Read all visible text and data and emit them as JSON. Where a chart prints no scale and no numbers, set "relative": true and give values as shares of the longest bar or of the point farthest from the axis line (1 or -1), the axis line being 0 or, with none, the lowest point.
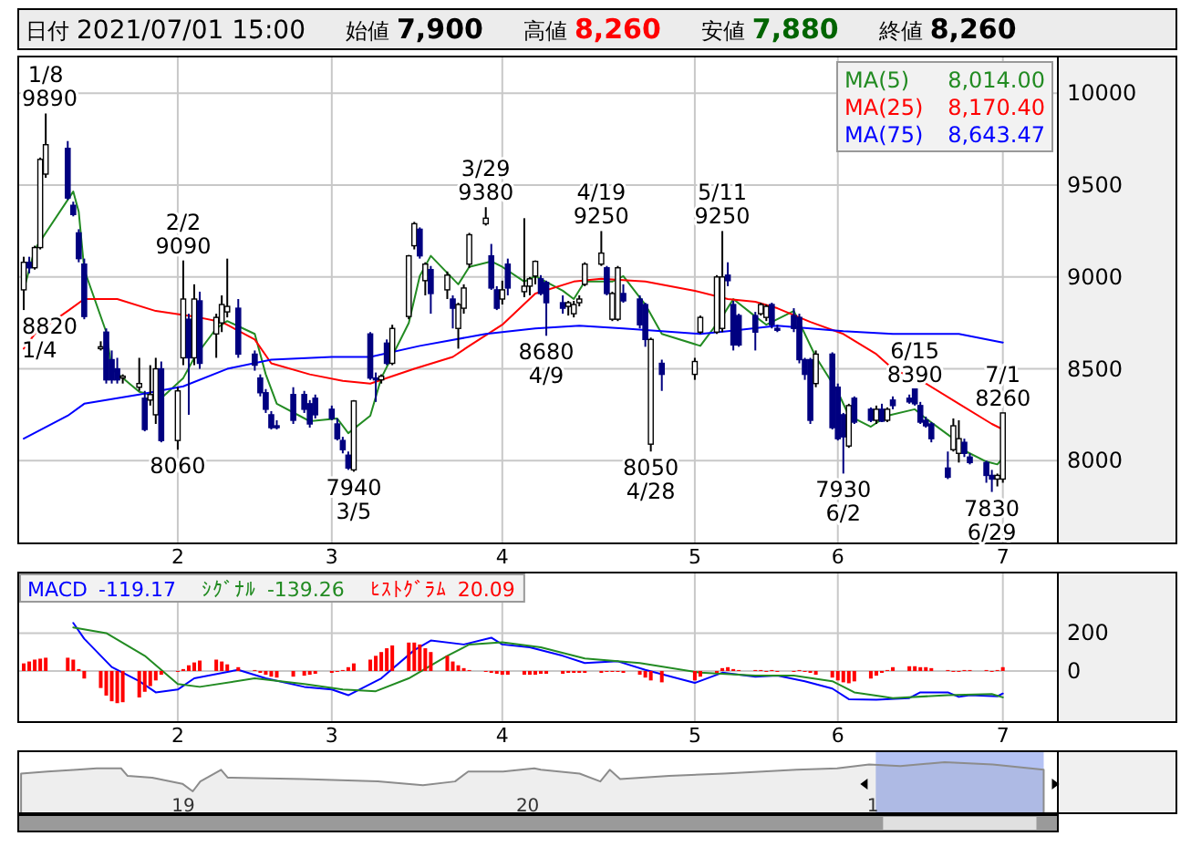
{
  "chart_data": [
    {
      "type": "other",
      "annotations": [
        "日付",
        "2021/07/01 15:00",
        "始値",
        "7,900",
        "高値",
        "8,260",
        "安値",
        "7,880",
        "終値",
        "8,260"
      ],
      "colors": [
        "#000000",
        "#000000",
        "#000000",
        "#000000",
        "#000000",
        "#ff0000",
        "#000000",
        "#006400",
        "#000000",
        "#000000"
      ]
    },
    {
      "type": "candlestick",
      "x": [
        "2021-01-04",
        "2021-01-05",
        "2021-01-06",
        "2021-01-07",
        "2021-01-08",
        "2021-01-12",
        "2021-01-13",
        "2021-01-14",
        "2021-01-15",
        "2021-01-18",
        "2021-01-19",
        "2021-01-20",
        "2021-01-21",
        "2021-01-22",
        "2021-01-25",
        "2021-01-26",
        "2021-01-27",
        "2021-01-28",
        "2021-01-29",
        "2021-02-01",
        "2021-02-02",
        "2021-02-03",
        "2021-02-04",
        "2021-02-05",
        "2021-02-08",
        "2021-02-09",
        "2021-02-10",
        "2021-02-12",
        "2021-02-15",
        "2021-02-16",
        "2021-02-17",
        "2021-02-18",
        "2021-02-19",
        "2021-02-22",
        "2021-02-24",
        "2021-02-25",
        "2021-02-26",
        "2021-03-01",
        "2021-03-02",
        "2021-03-03",
        "2021-03-04",
        "2021-03-05",
        "2021-03-08",
        "2021-03-09",
        "2021-03-10",
        "2021-03-11",
        "2021-03-12",
        "2021-03-15",
        "2021-03-16",
        "2021-03-17",
        "2021-03-18",
        "2021-03-19",
        "2021-03-22",
        "2021-03-23",
        "2021-03-24",
        "2021-03-25",
        "2021-03-26",
        "2021-03-29",
        "2021-03-30",
        "2021-03-31",
        "2021-04-01",
        "2021-04-02",
        "2021-04-05",
        "2021-04-06",
        "2021-04-07",
        "2021-04-08",
        "2021-04-09",
        "2021-04-12",
        "2021-04-13",
        "2021-04-14",
        "2021-04-15",
        "2021-04-16",
        "2021-04-19",
        "2021-04-20",
        "2021-04-21",
        "2021-04-22",
        "2021-04-23",
        "2021-04-26",
        "2021-04-27",
        "2021-04-28",
        "2021-04-30",
        "2021-05-06",
        "2021-05-07",
        "2021-05-10",
        "2021-05-11",
        "2021-05-12",
        "2021-05-13",
        "2021-05-14",
        "2021-05-17",
        "2021-05-18",
        "2021-05-19",
        "2021-05-20",
        "2021-05-21",
        "2021-05-24",
        "2021-05-25",
        "2021-05-26",
        "2021-05-27",
        "2021-05-28",
        "2021-05-31",
        "2021-06-01",
        "2021-06-02",
        "2021-06-03",
        "2021-06-04",
        "2021-06-07",
        "2021-06-08",
        "2021-06-09",
        "2021-06-10",
        "2021-06-11",
        "2021-06-14",
        "2021-06-15",
        "2021-06-16",
        "2021-06-17",
        "2021-06-18",
        "2021-06-21",
        "2021-06-22",
        "2021-06-23",
        "2021-06-24",
        "2021-06-25",
        "2021-06-28",
        "2021-06-29",
        "2021-06-30",
        "2021-07-01"
      ],
      "xlim": [
        "2021-01-03",
        "2021-07-11"
      ],
      "xticks": [
        {
          "value": "2021-02-01",
          "label": "2"
        },
        {
          "value": "2021-03-01",
          "label": "3"
        },
        {
          "value": "2021-04-01",
          "label": "4"
        },
        {
          "value": "2021-05-06",
          "label": "5"
        },
        {
          "value": "2021-06-01",
          "label": "6"
        },
        {
          "value": "2021-07-01",
          "label": "7"
        }
      ],
      "ylim": [
        7550,
        10200
      ],
      "yticks": [
        8000,
        8500,
        9000,
        9500,
        10000
      ],
      "grid": true,
      "legend": "top right",
      "ohlc": [
        [
          8930,
          9110,
          8820,
          9080
        ],
        [
          9080,
          9110,
          9020,
          9050
        ],
        [
          9050,
          9170,
          9040,
          9160
        ],
        [
          9160,
          9650,
          9150,
          9640
        ],
        [
          9560,
          9890,
          9540,
          9720
        ],
        [
          9700,
          9740,
          9420,
          9430
        ],
        [
          9390,
          9410,
          9330,
          9340
        ],
        [
          9240,
          9260,
          9080,
          9100
        ],
        [
          9070,
          9100,
          8770,
          8785
        ],
        [
          8610,
          8650,
          8600,
          8620
        ],
        [
          8700,
          8720,
          8420,
          8440
        ],
        [
          8550,
          8600,
          8420,
          8440
        ],
        [
          8500,
          8560,
          8420,
          8440
        ],
        [
          8450,
          8470,
          8420,
          8460
        ],
        [
          8400,
          8560,
          8380,
          8420
        ],
        [
          8340,
          8380,
          8160,
          8170
        ],
        [
          8330,
          8520,
          8300,
          8360
        ],
        [
          8250,
          8560,
          8200,
          8500
        ],
        [
          8500,
          8540,
          8100,
          8110
        ],
        [
          8110,
          8400,
          8060,
          8380
        ],
        [
          8560,
          9090,
          8520,
          8880
        ],
        [
          8770,
          8800,
          8250,
          8560
        ],
        [
          8560,
          8960,
          8520,
          8880
        ],
        [
          8870,
          8920,
          8500,
          8530
        ],
        [
          8690,
          8800,
          8560,
          8780
        ],
        [
          8750,
          8900,
          8700,
          8850
        ],
        [
          8810,
          9100,
          8780,
          8840
        ],
        [
          8830,
          8880,
          8560,
          8580
        ],
        [
          8580,
          8600,
          8490,
          8520
        ],
        [
          8450,
          8470,
          8350,
          8370
        ],
        [
          8370,
          8390,
          8260,
          8280
        ],
        [
          8250,
          8270,
          8170,
          8180
        ],
        [
          8190,
          8220,
          8170,
          8180
        ],
        [
          8360,
          8400,
          8200,
          8220
        ],
        [
          8360,
          8380,
          8260,
          8280
        ],
        [
          8310,
          8330,
          8180,
          8200
        ],
        [
          8340,
          8360,
          8230,
          8250
        ],
        [
          8280,
          8300,
          8220,
          8230
        ],
        [
          8200,
          8230,
          8110,
          8120
        ],
        [
          8110,
          8130,
          8040,
          8060
        ],
        [
          8030,
          8050,
          7950,
          7960
        ],
        [
          7950,
          8330,
          7940,
          8325
        ],
        [
          8690,
          8700,
          8440,
          8450
        ],
        [
          8450,
          8480,
          8320,
          8440
        ],
        [
          8440,
          8470,
          8420,
          8460
        ],
        [
          8640,
          8660,
          8520,
          8530
        ],
        [
          8530,
          8740,
          8520,
          8720
        ],
        [
          8785,
          9120,
          8770,
          9115
        ],
        [
          9170,
          9300,
          9150,
          9290
        ],
        [
          9260,
          9270,
          9100,
          9115
        ],
        [
          8980,
          9080,
          8900,
          9070
        ],
        [
          9040,
          9060,
          8800,
          8910
        ],
        [
          8930,
          9030,
          8880,
          9010
        ],
        [
          8880,
          8900,
          8720,
          8830
        ],
        [
          8720,
          8860,
          8610,
          8850
        ],
        [
          8830,
          8960,
          8800,
          8940
        ],
        [
          9070,
          9240,
          9050,
          9230
        ],
        [
          9290,
          9380,
          9280,
          9320
        ],
        [
          9115,
          9180,
          8930,
          8940
        ],
        [
          8930,
          8950,
          8820,
          8830
        ],
        [
          8880,
          8980,
          8850,
          8930
        ],
        [
          9070,
          9100,
          8900,
          8940
        ],
        [
          8920,
          9320,
          8890,
          8950
        ],
        [
          8950,
          9000,
          8900,
          8990
        ],
        [
          9005,
          9090,
          8960,
          9085
        ],
        [
          8990,
          9010,
          8900,
          8910
        ],
        [
          8970,
          8980,
          8680,
          8860
        ],
        [
          8860,
          8900,
          8800,
          8830
        ],
        [
          8840,
          8870,
          8790,
          8860
        ],
        [
          8800,
          8870,
          8780,
          8850
        ],
        [
          8860,
          8900,
          8840,
          8880
        ],
        [
          8960,
          9080,
          8950,
          9070
        ],
        [
          9070,
          9250,
          9060,
          9130
        ],
        [
          9050,
          9060,
          8900,
          8910
        ],
        [
          8770,
          8920,
          8760,
          8910
        ],
        [
          8770,
          9060,
          8760,
          9050
        ],
        [
          8910,
          8960,
          8860,
          8870
        ],
        [
          8880,
          8900,
          8720,
          8740
        ],
        [
          8850,
          8860,
          8620,
          8660
        ],
        [
          8090,
          8670,
          8050,
          8660
        ],
        [
          8530,
          8550,
          8380,
          8470
        ],
        [
          8470,
          8560,
          8440,
          8540
        ],
        [
          8700,
          8790,
          8690,
          8780
        ],
        [
          8700,
          9010,
          8690,
          9000
        ],
        [
          8720,
          9250,
          8700,
          9000
        ],
        [
          9010,
          9080,
          8950,
          8980
        ],
        [
          8850,
          8870,
          8600,
          8630
        ],
        [
          8790,
          8800,
          8620,
          8630
        ],
        [
          8790,
          8810,
          8600,
          8700
        ],
        [
          8800,
          8860,
          8790,
          8850
        ],
        [
          8780,
          8850,
          8760,
          8840
        ],
        [
          8850,
          8860,
          8720,
          8740
        ],
        [
          8720,
          8740,
          8700,
          8710
        ],
        [
          8790,
          8830,
          8700,
          8720
        ],
        [
          8780,
          8800,
          8530,
          8550
        ],
        [
          8550,
          8560,
          8440,
          8470
        ],
        [
          8550,
          8560,
          8200,
          8220
        ],
        [
          8420,
          8600,
          8400,
          8580
        ],
        [
          8580,
          8590,
          8170,
          8180
        ],
        [
          8400,
          8420,
          8110,
          8120
        ],
        [
          8250,
          8260,
          7930,
          8130
        ],
        [
          8080,
          8310,
          8070,
          8300
        ],
        [
          8340,
          8350,
          8200,
          8210
        ],
        [
          8280,
          8290,
          8210,
          8220
        ],
        [
          8220,
          8300,
          8200,
          8280
        ],
        [
          8280,
          8310,
          8210,
          8215
        ],
        [
          8220,
          8290,
          8210,
          8280
        ],
        [
          8330,
          8350,
          8280,
          8300
        ],
        [
          8340,
          8360,
          8310,
          8320
        ],
        [
          8390,
          8390,
          8300,
          8310
        ],
        [
          8300,
          8320,
          8200,
          8210
        ],
        [
          8220,
          8240,
          8180,
          8190
        ],
        [
          8200,
          8210,
          8100,
          8120
        ],
        [
          7960,
          8050,
          7900,
          7910
        ],
        [
          8060,
          8230,
          8050,
          8190
        ],
        [
          8040,
          8220,
          7990,
          8120
        ],
        [
          8100,
          8120,
          8020,
          8040
        ],
        [
          8020,
          8040,
          7980,
          7990
        ],
        [
          7990,
          8000,
          7880,
          7920
        ],
        [
          7920,
          7950,
          7830,
          7900
        ],
        [
          7900,
          7930,
          7860,
          7920
        ],
        [
          7900,
          8260,
          7880,
          8260
        ]
      ],
      "series": [
        {
          "name": "MA(5)",
          "type": "line",
          "color": "#228b22",
          "x": [
            "2021-01-04",
            "2021-01-06",
            "2021-01-13",
            "2021-01-14",
            "2021-01-15",
            "2021-01-19",
            "2021-01-20",
            "2021-01-25",
            "2021-01-27",
            "2021-01-29",
            "2021-02-02",
            "2021-02-04",
            "2021-02-08",
            "2021-02-10",
            "2021-02-15",
            "2021-02-17",
            "2021-02-19",
            "2021-02-25",
            "2021-03-02",
            "2021-03-04",
            "2021-03-08",
            "2021-03-10",
            "2021-03-15",
            "2021-03-17",
            "2021-03-19",
            "2021-03-24",
            "2021-03-26",
            "2021-03-30",
            "2021-04-01",
            "2021-04-05",
            "2021-04-07",
            "2021-04-12",
            "2021-04-14",
            "2021-04-16",
            "2021-04-21",
            "2021-04-23",
            "2021-04-27",
            "2021-04-30",
            "2021-05-07",
            "2021-05-11",
            "2021-05-13",
            "2021-05-17",
            "2021-05-19",
            "2021-05-24",
            "2021-05-28",
            "2021-06-01",
            "2021-06-03",
            "2021-06-07",
            "2021-06-10",
            "2021-06-15",
            "2021-06-17",
            "2021-06-22",
            "2021-06-24",
            "2021-06-28",
            "2021-06-30",
            "2021-07-01"
          ],
          "values": [
            8930,
            9150,
            9465,
            9355,
            9040,
            8700,
            8500,
            8375,
            8360,
            8340,
            8450,
            8560,
            8720,
            8760,
            8690,
            8470,
            8310,
            8215,
            8230,
            8150,
            8245,
            8450,
            8750,
            9005,
            9115,
            8960,
            9055,
            9085,
            9055,
            8975,
            9005,
            8925,
            8880,
            8975,
            8975,
            9005,
            8850,
            8690,
            8625,
            8785,
            8880,
            8785,
            8740,
            8815,
            8565,
            8375,
            8245,
            8185,
            8245,
            8280,
            8230,
            8120,
            8055,
            7995,
            7980,
            8014
          ]
        },
        {
          "name": "MA(25)",
          "type": "line",
          "color": "#ff0000",
          "x": [
            "2021-01-04",
            "2021-01-06",
            "2021-01-12",
            "2021-01-15",
            "2021-01-21",
            "2021-01-28",
            "2021-02-04",
            "2021-02-09",
            "2021-02-15",
            "2021-02-18",
            "2021-02-25",
            "2021-03-03",
            "2021-03-08",
            "2021-03-16",
            "2021-03-23",
            "2021-03-26",
            "2021-04-01",
            "2021-04-07",
            "2021-04-14",
            "2021-04-19",
            "2021-04-27",
            "2021-05-06",
            "2021-05-12",
            "2021-05-17",
            "2021-05-21",
            "2021-05-27",
            "2021-06-02",
            "2021-06-08",
            "2021-06-11",
            "2021-06-17",
            "2021-06-23",
            "2021-06-29",
            "2021-07-01"
          ],
          "values": [
            8610,
            8690,
            8815,
            8880,
            8880,
            8815,
            8785,
            8755,
            8660,
            8530,
            8470,
            8435,
            8420,
            8500,
            8565,
            8625,
            8740,
            8910,
            8975,
            8990,
            8975,
            8925,
            8880,
            8865,
            8830,
            8755,
            8690,
            8580,
            8500,
            8420,
            8310,
            8200,
            8170.4
          ]
        },
        {
          "name": "MA(75)",
          "type": "line",
          "color": "#0000ff",
          "x": [
            "2021-01-04",
            "2021-01-12",
            "2021-01-15",
            "2021-01-25",
            "2021-02-02",
            "2021-02-10",
            "2021-02-18",
            "2021-03-01",
            "2021-03-08",
            "2021-03-17",
            "2021-03-29",
            "2021-04-07",
            "2021-04-15",
            "2021-04-23",
            "2021-05-07",
            "2021-05-12",
            "2021-05-21",
            "2021-06-02",
            "2021-06-11",
            "2021-06-23",
            "2021-07-01"
          ],
          "values": [
            8120,
            8245,
            8310,
            8360,
            8405,
            8500,
            8550,
            8565,
            8565,
            8625,
            8690,
            8720,
            8735,
            8720,
            8690,
            8705,
            8735,
            8705,
            8690,
            8690,
            8643.47
          ]
        }
      ],
      "annotations": [
        "8,014.00",
        "8,170.40",
        "8,643.47",
        {
          "text": "1/8",
          "x": "2021-01-08",
          "y": 9890
        },
        {
          "text": "9890",
          "x": "2021-01-08",
          "y": 9890
        },
        {
          "text": "8820",
          "x": "2021-01-04",
          "y": 8820
        },
        {
          "text": "1/4",
          "x": "2021-01-04",
          "y": 8820
        },
        {
          "text": "2/2",
          "x": "2021-02-02",
          "y": 9090
        },
        {
          "text": "9090",
          "x": "2021-02-02",
          "y": 9090
        },
        {
          "text": "8060",
          "x": "2021-02-01",
          "y": 8060
        },
        {
          "text": "7940",
          "x": "2021-03-05",
          "y": 7940
        },
        {
          "text": "3/5",
          "x": "2021-03-05",
          "y": 7940
        },
        {
          "text": "3/29",
          "x": "2021-03-29",
          "y": 9380
        },
        {
          "text": "9380",
          "x": "2021-03-29",
          "y": 9380
        },
        {
          "text": "8680",
          "x": "2021-04-09",
          "y": 8680
        },
        {
          "text": "4/9",
          "x": "2021-04-09",
          "y": 8680
        },
        {
          "text": "4/19",
          "x": "2021-04-19",
          "y": 9250
        },
        {
          "text": "9250",
          "x": "2021-04-19",
          "y": 9250
        },
        {
          "text": "8050",
          "x": "2021-04-28",
          "y": 8050
        },
        {
          "text": "4/28",
          "x": "2021-04-28",
          "y": 8050
        },
        {
          "text": "5/11",
          "x": "2021-05-11",
          "y": 9250
        },
        {
          "text": "9250",
          "x": "2021-05-11",
          "y": 9250
        },
        {
          "text": "7930",
          "x": "2021-06-02",
          "y": 7930
        },
        {
          "text": "6/2",
          "x": "2021-06-02",
          "y": 7930
        },
        {
          "text": "6/15",
          "x": "2021-06-15",
          "y": 8390
        },
        {
          "text": "8390",
          "x": "2021-06-15",
          "y": 8390
        },
        {
          "text": "7830",
          "x": "2021-06-29",
          "y": 7830
        },
        {
          "text": "6/29",
          "x": "2021-06-29",
          "y": 7830
        },
        {
          "text": "7/1",
          "x": "2021-07-01",
          "y": 8260
        },
        {
          "text": "8260",
          "x": "2021-07-01",
          "y": 8260
        }
      ]
    },
    {
      "type": "line",
      "x": [
        "2021-01-04",
        "2021-01-05",
        "2021-01-06",
        "2021-01-07",
        "2021-01-08",
        "2021-01-12",
        "2021-01-13",
        "2021-01-14",
        "2021-01-15",
        "2021-01-18",
        "2021-01-19",
        "2021-01-20",
        "2021-01-21",
        "2021-01-22",
        "2021-01-25",
        "2021-01-26",
        "2021-01-27",
        "2021-01-28",
        "2021-01-29",
        "2021-02-01",
        "2021-02-02",
        "2021-02-03",
        "2021-02-04",
        "2021-02-05",
        "2021-02-08",
        "2021-02-09",
        "2021-02-10",
        "2021-02-12",
        "2021-02-15",
        "2021-02-16",
        "2021-02-17",
        "2021-02-18",
        "2021-02-19",
        "2021-02-22",
        "2021-02-24",
        "2021-02-25",
        "2021-02-26",
        "2021-03-01",
        "2021-03-02",
        "2021-03-03",
        "2021-03-04",
        "2021-03-05",
        "2021-03-08",
        "2021-03-09",
        "2021-03-10",
        "2021-03-11",
        "2021-03-12",
        "2021-03-15",
        "2021-03-16",
        "2021-03-17",
        "2021-03-18",
        "2021-03-19",
        "2021-03-22",
        "2021-03-23",
        "2021-03-24",
        "2021-03-25",
        "2021-03-26",
        "2021-03-29",
        "2021-03-30",
        "2021-03-31",
        "2021-04-01",
        "2021-04-02",
        "2021-04-05",
        "2021-04-06",
        "2021-04-07",
        "2021-04-08",
        "2021-04-09",
        "2021-04-12",
        "2021-04-13",
        "2021-04-14",
        "2021-04-15",
        "2021-04-16",
        "2021-04-19",
        "2021-04-20",
        "2021-04-21",
        "2021-04-22",
        "2021-04-23",
        "2021-04-26",
        "2021-04-27",
        "2021-04-28",
        "2021-04-30",
        "2021-05-06",
        "2021-05-07",
        "2021-05-10",
        "2021-05-11",
        "2021-05-12",
        "2021-05-13",
        "2021-05-14",
        "2021-05-17",
        "2021-05-18",
        "2021-05-19",
        "2021-05-20",
        "2021-05-21",
        "2021-05-24",
        "2021-05-25",
        "2021-05-26",
        "2021-05-27",
        "2021-05-28",
        "2021-05-31",
        "2021-06-01",
        "2021-06-02",
        "2021-06-03",
        "2021-06-04",
        "2021-06-07",
        "2021-06-08",
        "2021-06-09",
        "2021-06-10",
        "2021-06-11",
        "2021-06-14",
        "2021-06-15",
        "2021-06-16",
        "2021-06-17",
        "2021-06-18",
        "2021-06-21",
        "2021-06-22",
        "2021-06-23",
        "2021-06-24",
        "2021-06-25",
        "2021-06-28",
        "2021-06-29",
        "2021-06-30",
        "2021-07-01"
      ],
      "xlim": [
        "2021-01-03",
        "2021-07-11"
      ],
      "xticks": [
        {
          "value": "2021-02-01",
          "label": "2"
        },
        {
          "value": "2021-03-01",
          "label": "3"
        },
        {
          "value": "2021-04-01",
          "label": "4"
        },
        {
          "value": "2021-05-06",
          "label": "5"
        },
        {
          "value": "2021-06-01",
          "label": "6"
        },
        {
          "value": "2021-07-01",
          "label": "7"
        }
      ],
      "ylim": [
        -270,
        520
      ],
      "yticks": [
        0,
        200
      ],
      "grid": true,
      "legend": "top left",
      "series": [
        {
          "name": "MACD",
          "color": "#0000ff",
          "x": [
            "2021-01-13",
            "2021-01-15",
            "2021-01-20",
            "2021-01-25",
            "2021-01-28",
            "2021-02-01",
            "2021-02-04",
            "2021-02-12",
            "2021-02-17",
            "2021-02-24",
            "2021-03-01",
            "2021-03-04",
            "2021-03-10",
            "2021-03-16",
            "2021-03-19",
            "2021-03-25",
            "2021-03-30",
            "2021-04-01",
            "2021-04-06",
            "2021-04-12",
            "2021-04-16",
            "2021-04-22",
            "2021-04-27",
            "2021-05-06",
            "2021-05-11",
            "2021-05-17",
            "2021-05-21",
            "2021-05-26",
            "2021-05-31",
            "2021-06-03",
            "2021-06-08",
            "2021-06-14",
            "2021-06-16",
            "2021-06-21",
            "2021-06-23",
            "2021-06-25",
            "2021-06-30",
            "2021-07-01"
          ],
          "values": [
            254,
            170,
            21,
            -54,
            -113,
            -98,
            -39,
            6,
            -39,
            -84,
            -98,
            -128,
            -39,
            110,
            161,
            140,
            176,
            140,
            125,
            80,
            42,
            51,
            6,
            -63,
            -9,
            -30,
            -24,
            -54,
            -93,
            -149,
            -152,
            -143,
            -113,
            -113,
            -137,
            -128,
            -134,
            -119.17
          ]
        },
        {
          "name": "ｼｸﾞﾅﾙ",
          "color": "#228b22",
          "x": [
            "2021-01-13",
            "2021-01-19",
            "2021-01-26",
            "2021-02-01",
            "2021-02-05",
            "2021-02-15",
            "2021-02-24",
            "2021-03-03",
            "2021-03-09",
            "2021-03-15",
            "2021-03-22",
            "2021-03-26",
            "2021-04-01",
            "2021-04-08",
            "2021-04-16",
            "2021-04-26",
            "2021-05-07",
            "2021-05-17",
            "2021-05-24",
            "2021-05-31",
            "2021-06-04",
            "2021-06-11",
            "2021-06-21",
            "2021-06-29",
            "2021-07-01"
          ],
          "values": [
            230,
            200,
            80,
            -69,
            -84,
            -39,
            -69,
            -98,
            -107,
            -39,
            80,
            140,
            152,
            125,
            66,
            42,
            -9,
            -24,
            -24,
            -54,
            -113,
            -143,
            -128,
            -122,
            -139.26
          ]
        },
        {
          "name": "ﾋｽﾄｸﾞﾗﾑ",
          "type": "bar",
          "color": "#ff0000",
          "values": [
            40,
            50,
            60,
            65,
            70,
            70,
            60,
            10,
            -40,
            -90,
            -130,
            -160,
            -170,
            -165,
            -140,
            -110,
            -80,
            -50,
            -20,
            0,
            10,
            30,
            45,
            55,
            60,
            50,
            35,
            20,
            5,
            -10,
            -20,
            -30,
            -35,
            -30,
            -25,
            -20,
            -15,
            -10,
            -5,
            5,
            20,
            40,
            60,
            80,
            100,
            120,
            135,
            150,
            150,
            140,
            120,
            100,
            80,
            50,
            30,
            15,
            5,
            -5,
            -10,
            -15,
            -20,
            -20,
            -20,
            -20,
            -20,
            -15,
            -15,
            -15,
            -10,
            -10,
            -10,
            -10,
            -10,
            -5,
            -5,
            -5,
            -10,
            -20,
            -35,
            -50,
            -60,
            -50,
            -30,
            -10,
            15,
            20,
            10,
            5,
            5,
            5,
            0,
            5,
            0,
            0,
            5,
            -5,
            -10,
            -20,
            -35,
            -50,
            -60,
            -65,
            -55,
            -40,
            -25,
            -10,
            5,
            20,
            25,
            25,
            20,
            20,
            15,
            5,
            0,
            0,
            5,
            5,
            5,
            0,
            5,
            20.09
          ]
        }
      ],
      "annotations": [
        "-119.17",
        "-139.26",
        "20.09"
      ]
    },
    {
      "type": "area",
      "relative": true,
      "tick_labels": "x",
      "xlim": [
        "2018-07-10",
        "2021-07-16"
      ],
      "xticks": [
        {
          "value": "2019-01-01",
          "label": "19"
        },
        {
          "value": "2020-01-01",
          "label": "20"
        },
        {
          "value": "2021-01-01",
          "label": "1"
        }
      ],
      "bands": [
        {
          "axis": "x",
          "from": "2021-01-04",
          "to": "2021-07-01",
          "color": "#b4c2f4"
        }
      ],
      "series": [
        {
          "color": "#8c8c8c",
          "x": [
            "2018-07-13",
            "2018-08-10",
            "2018-09-10",
            "2018-10-01",
            "2018-10-27",
            "2018-11-03",
            "2018-11-29",
            "2018-12-31",
            "2019-01-11",
            "2019-01-19",
            "2019-02-10",
            "2019-02-17",
            "2019-05-08",
            "2019-07-26",
            "2019-09-12",
            "2019-10-16",
            "2019-10-30",
            "2019-12-06",
            "2020-01-08",
            "2020-01-15",
            "2020-02-25",
            "2020-03-18",
            "2020-03-28",
            "2020-04-08",
            "2020-05-30",
            "2020-07-27",
            "2020-09-06",
            "2020-10-12",
            "2020-11-24",
            "2020-12-28",
            "2021-01-30",
            "2021-03-18",
            "2021-05-08",
            "2021-07-01"
          ],
          "values": [
            0.61,
            0.68,
            0.74,
            0.79,
            0.79,
            0.53,
            0.47,
            0.26,
            0,
            0.34,
            0.74,
            0.47,
            0.42,
            0.34,
            0.21,
            0.34,
            0.68,
            0.68,
            0.79,
            0.74,
            0.61,
            0.34,
            0.74,
            0.42,
            0.53,
            0.61,
            0.68,
            0.74,
            0.79,
            0.92,
            0.87,
            1,
            0.92,
            0.74
          ]
        }
      ]
    }
  ]
}
